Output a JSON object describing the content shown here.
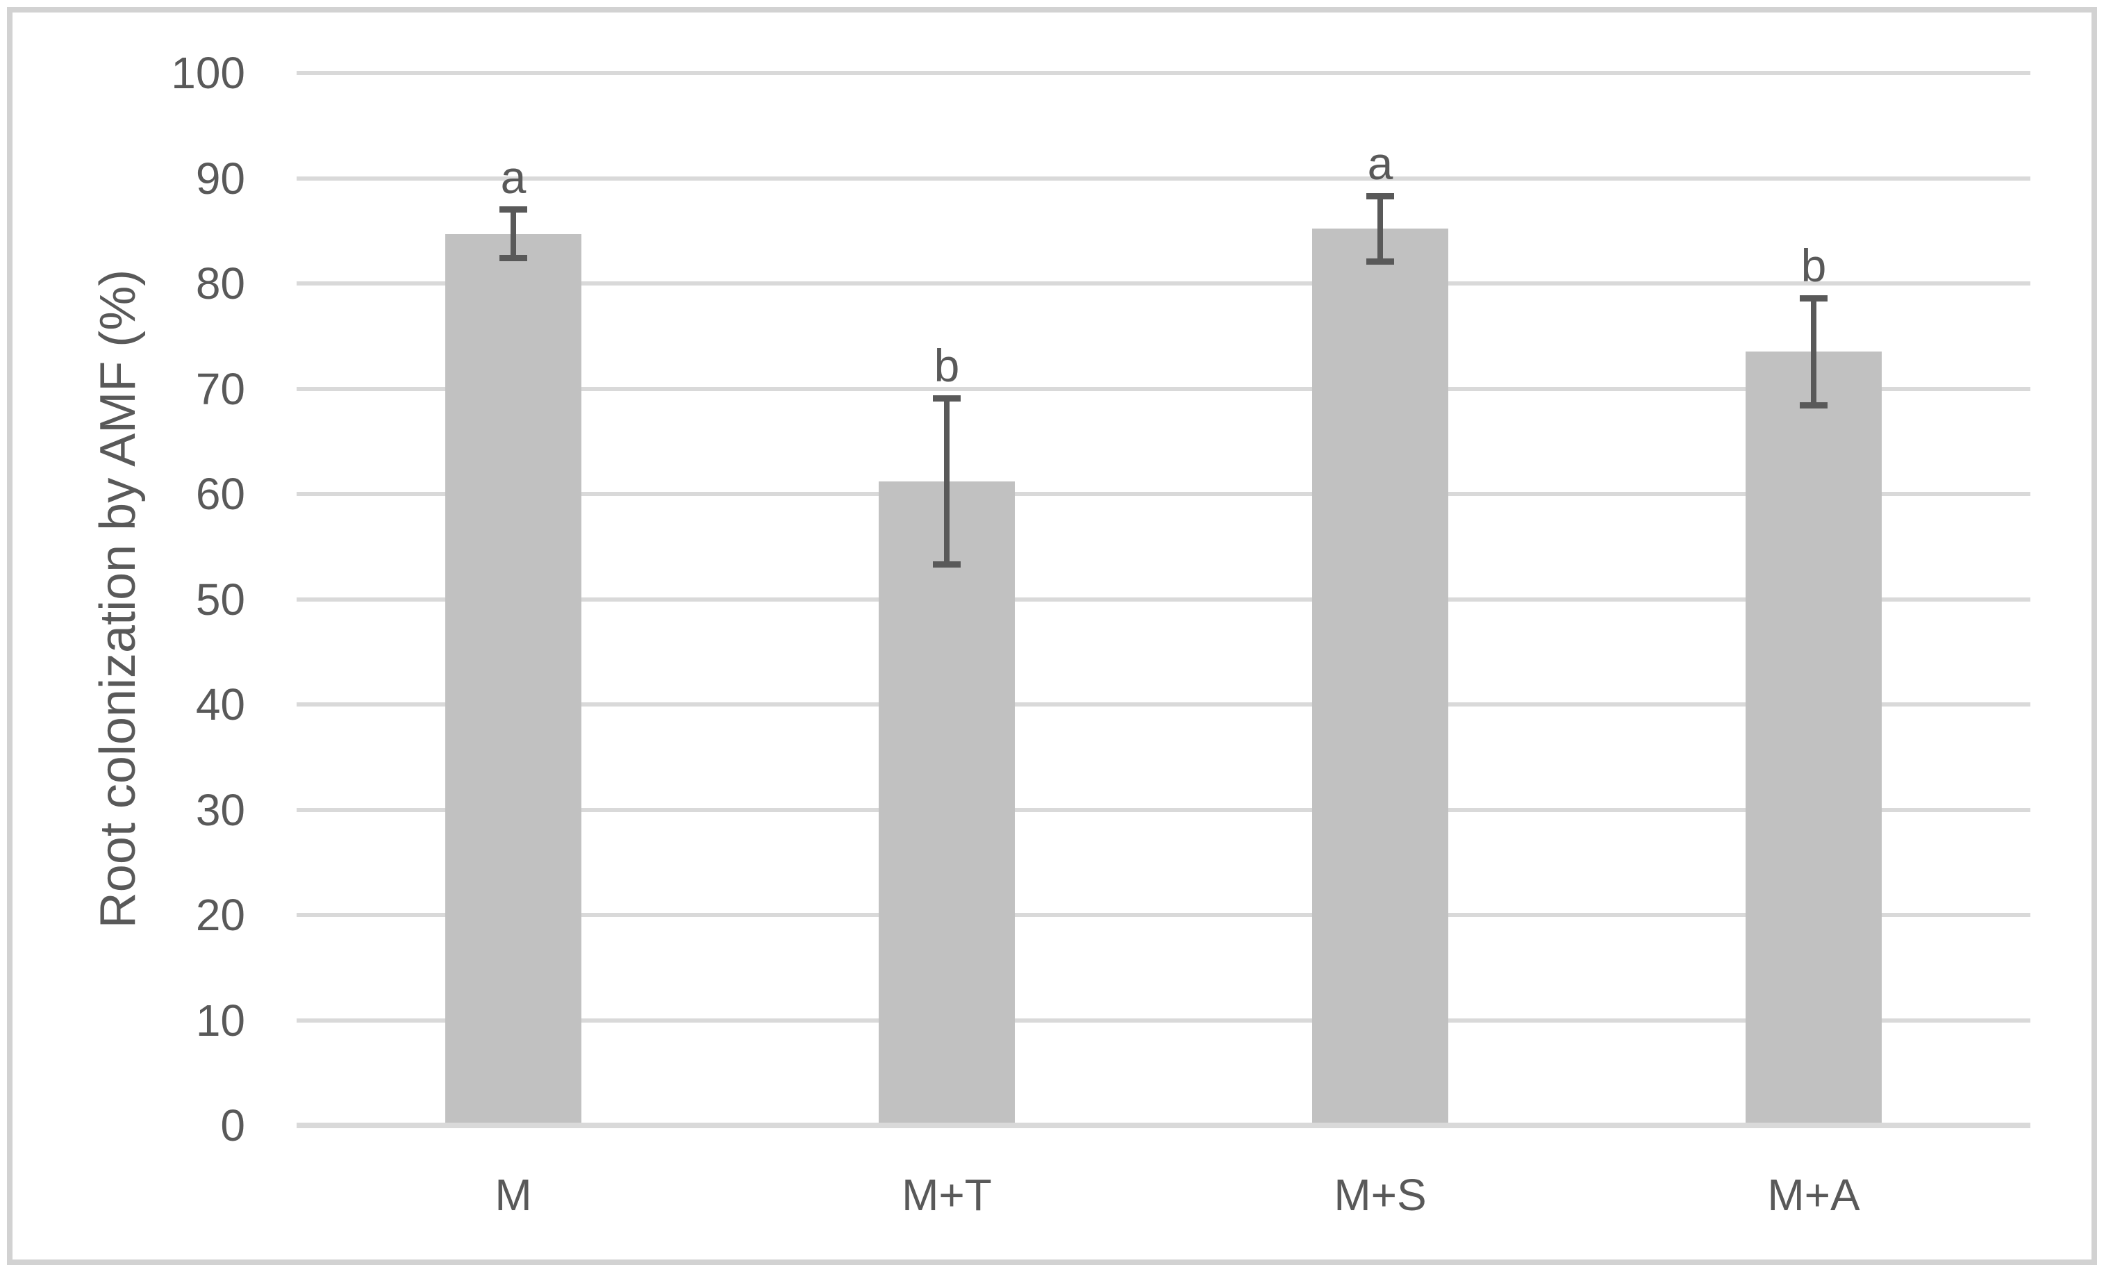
{
  "chart_data": {
    "type": "bar",
    "title": "",
    "categories": [
      "M",
      "M+T",
      "M+S",
      "M+A"
    ],
    "values": [
      84.7,
      61.2,
      85.2,
      73.5
    ],
    "errors": [
      2.3,
      7.9,
      3.1,
      5.1
    ],
    "sig_letters": [
      "a",
      "b",
      "a",
      "b"
    ],
    "ylabel": "Root colonization by AMF (%)",
    "xlabel": "",
    "ylim": [
      0,
      100
    ],
    "yticks": [
      0,
      10,
      20,
      30,
      40,
      50,
      60,
      70,
      80,
      90,
      100
    ],
    "grid": true,
    "legend": "none",
    "bar_color": "#c1c1c1",
    "error_color": "#595959",
    "gridline_color": "#d9d9d9",
    "axis_line_color": "#d9d9d9",
    "text_color": "#595959",
    "frame_color": "#d2d2d2",
    "background": "#ffffff"
  }
}
